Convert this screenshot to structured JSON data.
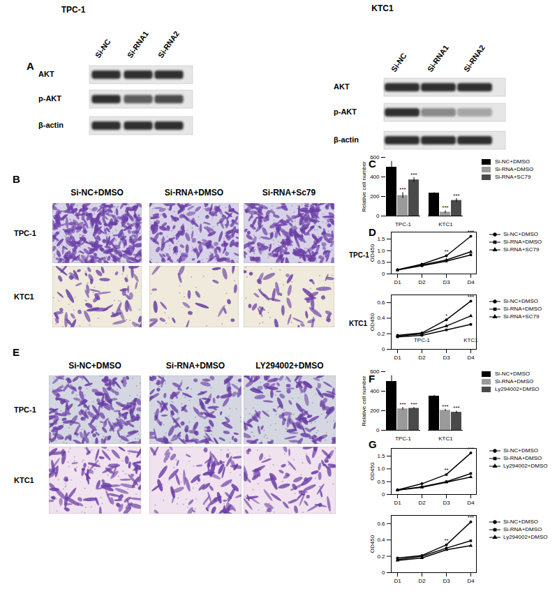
{
  "panels": {
    "A": {
      "label": "A",
      "blots": [
        {
          "title": "TPC-1",
          "lanes": [
            "Si-NC",
            "Si-RNA1",
            "Si-RNA2"
          ],
          "rows": [
            {
              "name": "AKT",
              "intensity": [
                1,
                1,
                1
              ]
            },
            {
              "name": "p-AKT",
              "intensity": [
                1,
                0.75,
                0.85
              ]
            },
            {
              "name": "β-actin",
              "intensity": [
                1,
                1,
                1
              ]
            }
          ]
        },
        {
          "title": "KTC1",
          "lanes": [
            "Si-NC",
            "Si-RNA1",
            "Si-RNA2"
          ],
          "rows": [
            {
              "name": "AKT",
              "intensity": [
                1,
                1,
                1
              ]
            },
            {
              "name": "p-AKT",
              "intensity": [
                1,
                0.5,
                0.35
              ]
            },
            {
              "name": "β-actin",
              "intensity": [
                1,
                1,
                1
              ]
            }
          ]
        }
      ]
    },
    "B": {
      "label": "B",
      "columns": [
        "Si-NC+DMSO",
        "Si-RNA+DMSO",
        "Si-RNA+Sc79"
      ],
      "rows": [
        "TPC-1",
        "KTC1"
      ]
    },
    "E": {
      "label": "E",
      "columns": [
        "Si-NC+DMSO",
        "Si-RNA+DMSO",
        "LY294002+DMSO"
      ],
      "rows": [
        "TPC-1",
        "KTC1"
      ]
    }
  },
  "chart_data": [
    {
      "panel": "C",
      "type": "bar",
      "ylabel": "Relative cell number",
      "categories": [
        "TPC-1",
        "KTC1"
      ],
      "ylim": [
        0,
        600
      ],
      "yticks": [
        0,
        200,
        400,
        600
      ],
      "legend": "right",
      "series": [
        {
          "name": "Si-NC+DMSO",
          "color": "#000000",
          "values": [
            500,
            235
          ],
          "errors": [
            60,
            5
          ],
          "significance": [
            null,
            null
          ]
        },
        {
          "name": "Si-RNA+DMSO",
          "color": "#9a9a9a",
          "values": [
            210,
            40
          ],
          "errors": [
            30,
            15
          ],
          "significance": [
            "***",
            "***"
          ]
        },
        {
          "name": "Si-RNA+SC79",
          "color": "#4a4a4a",
          "values": [
            370,
            160
          ],
          "errors": [
            25,
            20
          ],
          "significance": [
            "***",
            "***"
          ]
        }
      ]
    },
    {
      "panel": "D",
      "type": "line",
      "title": "TPC-1",
      "ylabel": "OD450",
      "categories": [
        "D1",
        "D2",
        "D3",
        "D4"
      ],
      "ylim": [
        0,
        1.8
      ],
      "yticks": [
        0,
        0.5,
        {
          "value": 1,
          "label": "1.0"
        },
        1.5
      ],
      "legend": "right",
      "series": [
        {
          "name": "Si-NC+DMSO",
          "color": "#000000",
          "marker": "circle",
          "values": [
            0.18,
            0.42,
            0.78,
            1.62
          ]
        },
        {
          "name": "Si-RNA+DMSO",
          "color": "#000000",
          "marker": "square",
          "values": [
            0.17,
            0.35,
            0.55,
            0.82
          ]
        },
        {
          "name": "Si-RNA+SC79",
          "color": "#000000",
          "marker": "triangle",
          "values": [
            0.17,
            0.38,
            0.6,
            0.95
          ]
        }
      ],
      "annotations": [
        {
          "x": "D3",
          "y": 0.78,
          "text": "**"
        },
        {
          "x": "D4",
          "y": 1.62,
          "text": "***"
        }
      ]
    },
    {
      "type": "line",
      "title": "KTC1",
      "ylabel": "OD450",
      "categories": [
        "D1",
        "D2",
        "D3",
        "D4"
      ],
      "ylim": [
        0,
        0.7
      ],
      "yticks": [
        0,
        0.2,
        0.4,
        0.6
      ],
      "legend": "right",
      "series": [
        {
          "name": "Si-NC+DMSO",
          "color": "#000000",
          "marker": "circle",
          "values": [
            0.18,
            0.21,
            0.38,
            0.62
          ]
        },
        {
          "name": "Si-RNA+DMSO",
          "color": "#000000",
          "marker": "square",
          "values": [
            0.16,
            0.18,
            0.25,
            0.32
          ]
        },
        {
          "name": "Si-RNA+SC79",
          "color": "#000000",
          "marker": "triangle",
          "values": [
            0.17,
            0.2,
            0.3,
            0.43
          ]
        }
      ],
      "annotations": [
        {
          "x": "D3",
          "y": 0.38,
          "text": "*"
        },
        {
          "x": "D4",
          "y": 0.62,
          "text": "***"
        },
        {
          "x": "D2",
          "y": 0.06,
          "text": "TPC-1"
        },
        {
          "x": "D4",
          "y": 0.06,
          "text": "KTC1"
        }
      ]
    },
    {
      "panel": "F",
      "type": "bar",
      "ylabel": "Relative cell number",
      "categories": [
        "TPC-1",
        "KTC1"
      ],
      "ylim": [
        0,
        600
      ],
      "yticks": [
        0,
        200,
        400,
        600
      ],
      "legend": "right",
      "series": [
        {
          "name": "Si-NC+DMSO",
          "color": "#000000",
          "values": [
            500,
            350
          ],
          "errors": [
            60,
            8
          ],
          "significance": [
            null,
            null
          ]
        },
        {
          "name": "Si-RNA+DMSO",
          "color": "#9a9a9a",
          "values": [
            220,
            205
          ],
          "errors": [
            15,
            10
          ],
          "significance": [
            "***",
            "***"
          ]
        },
        {
          "name": "Ly294002+DMSO",
          "color": "#4a4a4a",
          "values": [
            225,
            185
          ],
          "errors": [
            10,
            12
          ],
          "significance": [
            "***",
            "***"
          ]
        }
      ]
    },
    {
      "panel": "G",
      "type": "line",
      "ylabel": "OD450",
      "categories": [
        "D1",
        "D2",
        "D3",
        "D4"
      ],
      "ylim": [
        0,
        1.8
      ],
      "yticks": [
        0,
        0.5,
        {
          "value": 1,
          "label": "1.0"
        },
        1.5
      ],
      "legend": "right",
      "series": [
        {
          "name": "Si-NC+DMSO",
          "color": "#000000",
          "marker": "circle",
          "values": [
            0.18,
            0.42,
            0.78,
            1.62
          ]
        },
        {
          "name": "Si-RNA+DMSO",
          "color": "#000000",
          "marker": "square",
          "values": [
            0.17,
            0.3,
            0.5,
            0.82
          ]
        },
        {
          "name": "Ly294002+DMSO",
          "color": "#000000",
          "marker": "triangle",
          "values": [
            0.17,
            0.28,
            0.48,
            0.68
          ]
        }
      ],
      "annotations": [
        {
          "x": "D3",
          "y": 0.78,
          "text": "**"
        },
        {
          "x": "D4",
          "y": 1.62,
          "text": "***"
        }
      ]
    },
    {
      "type": "line",
      "ylabel": "OD450",
      "categories": [
        "D1",
        "D2",
        "D3",
        "D4"
      ],
      "ylim": [
        0,
        0.7
      ],
      "yticks": [
        0,
        0.2,
        0.4,
        0.6
      ],
      "legend": "right",
      "series": [
        {
          "name": "Si-NC+DMSO",
          "color": "#000000",
          "marker": "circle",
          "values": [
            0.18,
            0.21,
            0.34,
            0.62
          ]
        },
        {
          "name": "Si-RNA+DMSO",
          "color": "#000000",
          "marker": "square",
          "values": [
            0.16,
            0.2,
            0.3,
            0.39
          ]
        },
        {
          "name": "Ly294002+DMSO",
          "color": "#000000",
          "marker": "triangle",
          "values": [
            0.15,
            0.18,
            0.28,
            0.33
          ]
        }
      ],
      "annotations": [
        {
          "x": "D3",
          "y": 0.34,
          "text": "**"
        },
        {
          "x": "D4",
          "y": 0.62,
          "text": "***"
        }
      ]
    }
  ]
}
